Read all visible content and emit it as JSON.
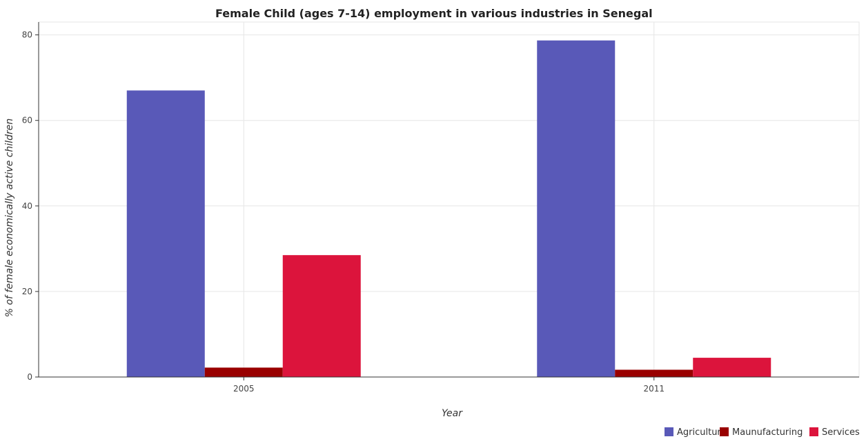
{
  "chart_data": {
    "type": "bar",
    "title": "Female Child (ages 7-14) employment in various industries in Senegal",
    "xlabel": "Year",
    "ylabel": "% of female economically active children",
    "categories": [
      "2005",
      "2011"
    ],
    "series": [
      {
        "name": "Agriculture",
        "color": "#5959b8",
        "values": [
          67.0,
          78.7
        ]
      },
      {
        "name": "Maunufacturing",
        "color": "#990000",
        "values": [
          2.2,
          1.7
        ]
      },
      {
        "name": "Services",
        "color": "#dc143c",
        "values": [
          28.5,
          4.5
        ]
      }
    ],
    "ylim": [
      0,
      83
    ],
    "yticks": [
      0,
      20,
      40,
      60,
      80
    ],
    "grid": true,
    "legend_position": "bottom-right"
  }
}
